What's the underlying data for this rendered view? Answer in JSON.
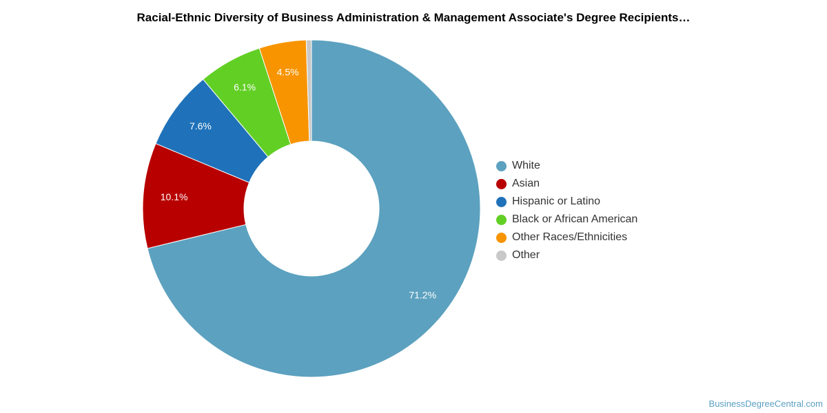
{
  "chart_data": {
    "type": "pie",
    "variant": "donut",
    "title": "Racial-Ethnic Diversity of Business Administration & Management Associate's Degree Recipients…",
    "categories": [
      "White",
      "Asian",
      "Hispanic or Latino",
      "Black or African American",
      "Other Races/Ethnicities",
      "Other"
    ],
    "values": [
      71.2,
      10.1,
      7.6,
      6.1,
      4.5,
      0.5
    ],
    "data_labels": [
      "71.2%",
      "10.1%",
      "7.6%",
      "6.1%",
      "4.5%",
      ""
    ],
    "colors": [
      "#5ca1bf",
      "#b80000",
      "#1f72b9",
      "#62cf25",
      "#f79400",
      "#c8c8c8"
    ],
    "legend_position": "right"
  },
  "source_text": "BusinessDegreeCentral.com"
}
